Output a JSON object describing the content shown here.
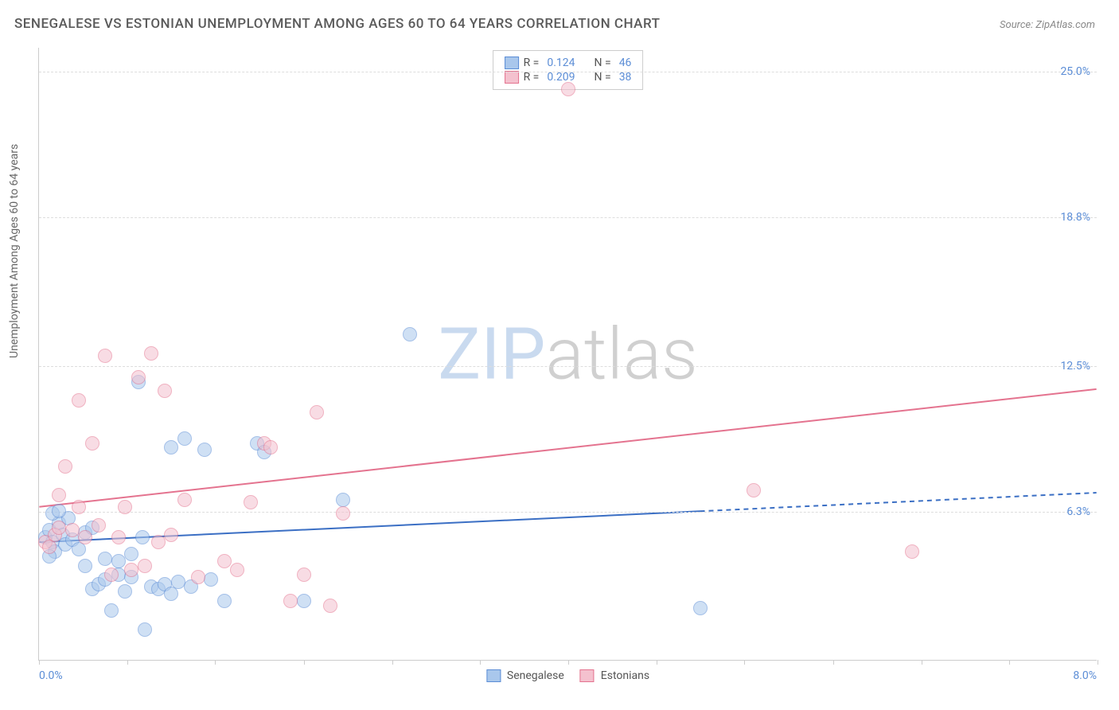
{
  "title": "SENEGALESE VS ESTONIAN UNEMPLOYMENT AMONG AGES 60 TO 64 YEARS CORRELATION CHART",
  "source": "Source: ZipAtlas.com",
  "ylabel": "Unemployment Among Ages 60 to 64 years",
  "watermark_zip": "ZIP",
  "watermark_atlas": "atlas",
  "chart": {
    "type": "scatter",
    "xlim": [
      0,
      8
    ],
    "ylim": [
      0,
      26
    ],
    "x_min_label": "0.0%",
    "x_max_label": "8.0%",
    "yticks": [
      {
        "v": 6.3,
        "label": "6.3%"
      },
      {
        "v": 12.5,
        "label": "12.5%"
      },
      {
        "v": 18.8,
        "label": "18.8%"
      },
      {
        "v": 25.0,
        "label": "25.0%"
      }
    ],
    "xticks": [
      0,
      0.67,
      1.33,
      2.0,
      2.67,
      3.33,
      4.0,
      4.67,
      5.33,
      6.0,
      6.67,
      7.33,
      8.0
    ],
    "background_color": "#ffffff",
    "grid_color": "#dddddd",
    "marker_radius": 9,
    "marker_opacity": 0.55,
    "series": [
      {
        "name": "Senegalese",
        "fill": "#a9c7ec",
        "stroke": "#5b8dd6",
        "R_label": "R =",
        "R": "0.124",
        "N_label": "N =",
        "N": "46",
        "trend": {
          "y0": 5.0,
          "y1": 7.1,
          "x_solid_end": 5.0,
          "width": 2,
          "color": "#3b6fc4"
        },
        "points": [
          [
            0.05,
            5.2
          ],
          [
            0.08,
            5.5
          ],
          [
            0.1,
            5.0
          ],
          [
            0.12,
            4.6
          ],
          [
            0.15,
            5.8
          ],
          [
            0.18,
            5.3
          ],
          [
            0.2,
            4.9
          ],
          [
            0.22,
            6.0
          ],
          [
            0.1,
            6.2
          ],
          [
            0.25,
            5.1
          ],
          [
            0.3,
            4.7
          ],
          [
            0.35,
            5.4
          ],
          [
            0.08,
            4.4
          ],
          [
            0.15,
            6.3
          ],
          [
            0.4,
            3.0
          ],
          [
            0.45,
            3.2
          ],
          [
            0.5,
            3.4
          ],
          [
            0.55,
            2.1
          ],
          [
            0.6,
            3.6
          ],
          [
            0.65,
            2.9
          ],
          [
            0.7,
            3.5
          ],
          [
            0.75,
            11.8
          ],
          [
            0.78,
            5.2
          ],
          [
            0.8,
            1.3
          ],
          [
            0.85,
            3.1
          ],
          [
            0.9,
            3.0
          ],
          [
            0.95,
            3.2
          ],
          [
            1.0,
            2.8
          ],
          [
            1.0,
            9.0
          ],
          [
            1.05,
            3.3
          ],
          [
            1.1,
            9.4
          ],
          [
            1.15,
            3.1
          ],
          [
            1.25,
            8.9
          ],
          [
            1.3,
            3.4
          ],
          [
            1.4,
            2.5
          ],
          [
            1.65,
            9.2
          ],
          [
            1.7,
            8.8
          ],
          [
            2.0,
            2.5
          ],
          [
            2.3,
            6.8
          ],
          [
            2.8,
            13.8
          ],
          [
            5.0,
            2.2
          ],
          [
            0.35,
            4.0
          ],
          [
            0.5,
            4.3
          ],
          [
            0.6,
            4.2
          ],
          [
            0.7,
            4.5
          ],
          [
            0.4,
            5.6
          ]
        ]
      },
      {
        "name": "Estonians",
        "fill": "#f4c1ce",
        "stroke": "#e4738f",
        "R_label": "R =",
        "R": "0.209",
        "N_label": "N =",
        "N": "38",
        "trend": {
          "y0": 6.5,
          "y1": 11.5,
          "x_solid_end": 8.0,
          "width": 2,
          "color": "#e4738f"
        },
        "points": [
          [
            0.05,
            5.0
          ],
          [
            0.08,
            4.8
          ],
          [
            0.12,
            5.3
          ],
          [
            0.15,
            5.6
          ],
          [
            0.2,
            8.2
          ],
          [
            0.25,
            5.5
          ],
          [
            0.3,
            11.0
          ],
          [
            0.35,
            5.2
          ],
          [
            0.4,
            9.2
          ],
          [
            0.45,
            5.7
          ],
          [
            0.5,
            12.9
          ],
          [
            0.55,
            3.6
          ],
          [
            0.6,
            5.2
          ],
          [
            0.65,
            6.5
          ],
          [
            0.7,
            3.8
          ],
          [
            0.75,
            12.0
          ],
          [
            0.8,
            4.0
          ],
          [
            0.85,
            13.0
          ],
          [
            0.9,
            5.0
          ],
          [
            0.95,
            11.4
          ],
          [
            1.0,
            5.3
          ],
          [
            1.1,
            6.8
          ],
          [
            1.2,
            3.5
          ],
          [
            1.4,
            4.2
          ],
          [
            1.5,
            3.8
          ],
          [
            1.6,
            6.7
          ],
          [
            1.7,
            9.2
          ],
          [
            1.75,
            9.0
          ],
          [
            1.9,
            2.5
          ],
          [
            2.0,
            3.6
          ],
          [
            2.1,
            10.5
          ],
          [
            2.2,
            2.3
          ],
          [
            2.3,
            6.2
          ],
          [
            4.0,
            24.2
          ],
          [
            5.4,
            7.2
          ],
          [
            6.6,
            4.6
          ],
          [
            0.15,
            7.0
          ],
          [
            0.3,
            6.5
          ]
        ]
      }
    ]
  }
}
